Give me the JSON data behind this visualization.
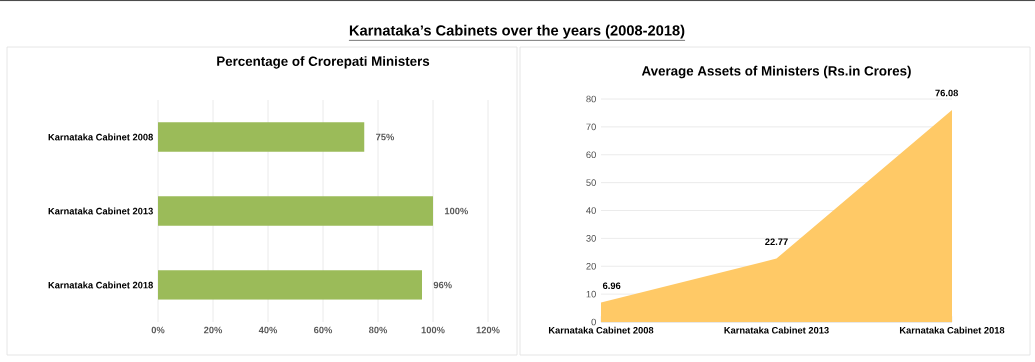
{
  "chart_data": [
    {
      "type": "bar",
      "orientation": "horizontal",
      "title": "Percentage of Crorepati Ministers",
      "annotations": [
        "Karnataka’s Cabinets over the years (2008-2018)"
      ],
      "categories": [
        "Karnataka  Cabinet 2008",
        "Karnataka  Cabinet 2013",
        "Karnataka  Cabinet 2018"
      ],
      "values": [
        75,
        100,
        96
      ],
      "value_labels": [
        "75%",
        "100%",
        "96%"
      ],
      "color": "#9bbb59",
      "xlim": [
        0,
        120
      ],
      "xticks": [
        {
          "value": 0,
          "label": "0%"
        },
        {
          "value": 20,
          "label": "20%"
        },
        {
          "value": 40,
          "label": "40%"
        },
        {
          "value": 60,
          "label": "60%"
        },
        {
          "value": 80,
          "label": "80%"
        },
        {
          "value": 100,
          "label": "100%"
        },
        {
          "value": 120,
          "label": "120%"
        }
      ],
      "grid": "x"
    },
    {
      "type": "area",
      "title": "Average Assets of Ministers (Rs.in Crores)",
      "categories": [
        "Karnataka  Cabinet 2008",
        "Karnataka  Cabinet 2013",
        "Karnataka  Cabinet 2018"
      ],
      "values": [
        6.96,
        22.77,
        76.08
      ],
      "color": "#ffc966",
      "data_labels": true,
      "ylim": [
        0,
        80
      ],
      "yticks": [
        0,
        10,
        20,
        30,
        40,
        50,
        60,
        70,
        80
      ],
      "grid": "y"
    }
  ]
}
